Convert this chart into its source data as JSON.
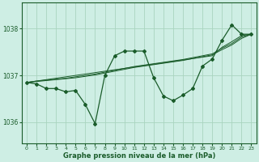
{
  "bg_color": "#ceeee4",
  "grid_color": "#aad4c0",
  "line_color": "#1a5c2a",
  "text_color": "#1a5c2a",
  "xlabel": "Graphe pression niveau de la mer (hPa)",
  "xlim": [
    -0.5,
    23.5
  ],
  "ylim": [
    1035.55,
    1038.55
  ],
  "yticks": [
    1036,
    1037,
    1038
  ],
  "xticks": [
    0,
    1,
    2,
    3,
    4,
    5,
    6,
    7,
    8,
    9,
    10,
    11,
    12,
    13,
    14,
    15,
    16,
    17,
    18,
    19,
    20,
    21,
    22,
    23
  ],
  "series_jagged": [
    1036.85,
    1036.82,
    1036.72,
    1036.72,
    1036.65,
    1036.68,
    1036.38,
    1035.97,
    1037.0,
    1037.42,
    1037.52,
    1037.52,
    1037.52,
    1036.95,
    1036.56,
    1036.46,
    1036.58,
    1036.72,
    1037.2,
    1037.35,
    1037.75,
    1038.08,
    1037.88,
    1037.88
  ],
  "series_linear1": [
    1036.85,
    1036.88,
    1036.91,
    1036.94,
    1036.97,
    1037.0,
    1037.03,
    1037.06,
    1037.09,
    1037.12,
    1037.15,
    1037.18,
    1037.21,
    1037.24,
    1037.27,
    1037.3,
    1037.33,
    1037.36,
    1037.39,
    1037.42,
    1037.6,
    1037.72,
    1037.85,
    1037.88
  ],
  "series_linear2": [
    1036.85,
    1036.88,
    1036.9,
    1036.92,
    1036.94,
    1036.97,
    1037.0,
    1037.03,
    1037.07,
    1037.11,
    1037.15,
    1037.19,
    1037.22,
    1037.25,
    1037.28,
    1037.31,
    1037.34,
    1037.38,
    1037.42,
    1037.46,
    1037.58,
    1037.68,
    1037.82,
    1037.88
  ],
  "series_linear3": [
    1036.85,
    1036.87,
    1036.89,
    1036.91,
    1036.93,
    1036.95,
    1036.98,
    1037.01,
    1037.05,
    1037.09,
    1037.13,
    1037.17,
    1037.2,
    1037.23,
    1037.26,
    1037.29,
    1037.32,
    1037.36,
    1037.4,
    1037.44,
    1037.55,
    1037.65,
    1037.79,
    1037.88
  ]
}
